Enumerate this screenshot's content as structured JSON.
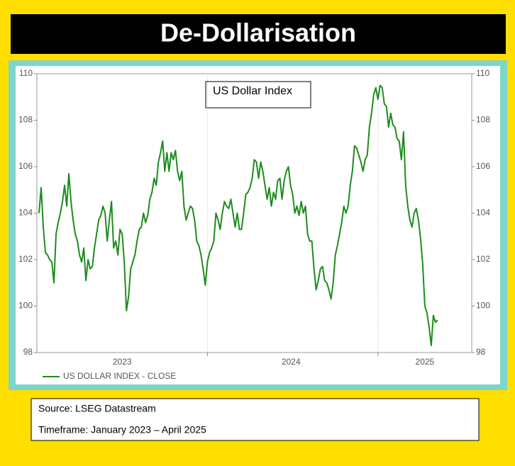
{
  "chart_data": {
    "type": "line",
    "title": "De-Dollarisation",
    "annotation": "US Dollar Index",
    "x": [
      2023.0125,
      2023.025,
      2023.0375,
      2023.05,
      2023.0625,
      2023.075,
      2023.0875,
      2023.1,
      2023.1125,
      2023.125,
      2023.1375,
      2023.15,
      2023.1625,
      2023.175,
      2023.1875,
      2023.2,
      2023.2125,
      2023.225,
      2023.2375,
      2023.25,
      2023.2625,
      2023.275,
      2023.2875,
      2023.3,
      2023.3125,
      2023.325,
      2023.3375,
      2023.35,
      2023.3625,
      2023.375,
      2023.3875,
      2023.4,
      2023.4125,
      2023.425,
      2023.4375,
      2023.45,
      2023.4625,
      2023.475,
      2023.4875,
      2023.5,
      2023.5125,
      2023.525,
      2023.5375,
      2023.55,
      2023.5625,
      2023.575,
      2023.5875,
      2023.6,
      2023.6125,
      2023.625,
      2023.6375,
      2023.65,
      2023.6625,
      2023.675,
      2023.6875,
      2023.7,
      2023.7125,
      2023.725,
      2023.7375,
      2023.75,
      2023.7625,
      2023.775,
      2023.7875,
      2023.8,
      2023.8125,
      2023.825,
      2023.8375,
      2023.85,
      2023.8625,
      2023.875,
      2023.8875,
      2023.9,
      2023.9125,
      2023.925,
      2023.9375,
      2023.95,
      2023.9625,
      2023.975,
      2023.9875,
      2024.0,
      2024.0125,
      2024.025,
      2024.0375,
      2024.05,
      2024.0625,
      2024.075,
      2024.0875,
      2024.1,
      2024.1125,
      2024.125,
      2024.1375,
      2024.15,
      2024.1625,
      2024.175,
      2024.1875,
      2024.2,
      2024.2125,
      2024.225,
      2024.2375,
      2024.25,
      2024.2625,
      2024.275,
      2024.2875,
      2024.3,
      2024.3125,
      2024.325,
      2024.3375,
      2024.35,
      2024.3625,
      2024.375,
      2024.3875,
      2024.4,
      2024.4125,
      2024.425,
      2024.4375,
      2024.45,
      2024.4625,
      2024.475,
      2024.4875,
      2024.5,
      2024.5125,
      2024.525,
      2024.5375,
      2024.55,
      2024.5625,
      2024.575,
      2024.5875,
      2024.6,
      2024.6125,
      2024.625,
      2024.6375,
      2024.65,
      2024.6625,
      2024.675,
      2024.6875,
      2024.7,
      2024.7125,
      2024.725,
      2024.7375,
      2024.75,
      2024.7625,
      2024.775,
      2024.7875,
      2024.8,
      2024.8125,
      2024.825,
      2024.8375,
      2024.85,
      2024.8625,
      2024.875,
      2024.8875,
      2024.9,
      2024.9125,
      2024.925,
      2024.9375,
      2024.95,
      2024.9625,
      2024.975,
      2024.9875,
      2025.0,
      2025.0125,
      2025.025,
      2025.0375,
      2025.05,
      2025.0625,
      2025.075,
      2025.0875,
      2025.1,
      2025.1125,
      2025.125,
      2025.1375,
      2025.15,
      2025.1625,
      2025.175,
      2025.1875,
      2025.2,
      2025.2125,
      2025.225,
      2025.2375,
      2025.25,
      2025.2625,
      2025.275,
      2025.2875,
      2025.3,
      2025.3125,
      2025.325,
      2025.3375,
      2025.35
    ],
    "series": [
      {
        "name": "US DOLLAR INDEX - CLOSE",
        "color": "#1e8c1e",
        "values": [
          104.0,
          105.1,
          103.4,
          102.3,
          102.2,
          102.0,
          101.9,
          101.0,
          103.1,
          103.6,
          104.0,
          104.5,
          105.2,
          104.3,
          105.7,
          104.5,
          103.7,
          103.1,
          102.8,
          102.2,
          101.9,
          102.5,
          101.1,
          102.0,
          101.6,
          101.7,
          102.5,
          103.1,
          103.7,
          103.9,
          104.3,
          104.0,
          102.8,
          103.7,
          104.5,
          102.5,
          102.8,
          102.2,
          103.3,
          103.1,
          101.9,
          99.8,
          100.4,
          101.6,
          101.9,
          102.2,
          102.8,
          103.3,
          103.4,
          104.0,
          103.6,
          103.9,
          104.6,
          104.9,
          105.5,
          105.2,
          106.2,
          106.6,
          107.1,
          105.8,
          106.6,
          105.8,
          106.6,
          106.3,
          106.7,
          105.8,
          105.4,
          105.8,
          104.3,
          103.7,
          104.0,
          104.3,
          104.2,
          103.7,
          102.8,
          102.6,
          102.2,
          101.6,
          100.9,
          101.9,
          102.3,
          102.5,
          102.8,
          104.0,
          103.7,
          103.3,
          104.0,
          104.5,
          104.3,
          104.2,
          104.6,
          104.0,
          103.4,
          104.0,
          103.3,
          103.3,
          104.0,
          104.8,
          104.9,
          105.1,
          105.5,
          106.3,
          106.2,
          105.5,
          106.2,
          105.8,
          105.2,
          104.6,
          105.1,
          104.3,
          104.9,
          104.6,
          105.4,
          105.5,
          104.6,
          105.4,
          105.8,
          106.0,
          105.2,
          104.8,
          104.0,
          104.3,
          103.9,
          104.5,
          104.0,
          104.3,
          103.1,
          102.8,
          102.8,
          101.6,
          100.7,
          101.1,
          101.6,
          101.7,
          101.1,
          101.0,
          100.7,
          100.3,
          101.0,
          102.2,
          102.6,
          103.1,
          103.6,
          104.3,
          104.0,
          104.3,
          105.2,
          105.8,
          106.9,
          106.8,
          106.5,
          106.2,
          105.8,
          106.3,
          106.5,
          107.7,
          108.3,
          109.1,
          109.4,
          108.9,
          109.5,
          109.4,
          108.7,
          108.6,
          107.7,
          108.3,
          107.8,
          107.7,
          107.2,
          107.1,
          106.3,
          107.5,
          105.2,
          104.3,
          103.7,
          103.4,
          104.0,
          104.2,
          103.7,
          102.9,
          101.8,
          100.0,
          99.7,
          99.1,
          98.3,
          99.6,
          99.3,
          99.4
        ]
      }
    ],
    "xlim": [
      2023,
      2025.55
    ],
    "xticks": [
      {
        "value": 2023.5,
        "label": "2023"
      },
      {
        "value": 2024.49,
        "label": "2024"
      },
      {
        "value": 2025.275,
        "label": "2025"
      }
    ],
    "xgrid": [
      2024,
      2025
    ],
    "ylim": [
      98,
      110
    ],
    "yticks": [
      98,
      100,
      102,
      104,
      106,
      108,
      110
    ],
    "legend": "bottom-left"
  },
  "footer": {
    "source": "Source:  LSEG Datastream",
    "timeframe": "Timeframe: January 2023 – April 2025"
  }
}
